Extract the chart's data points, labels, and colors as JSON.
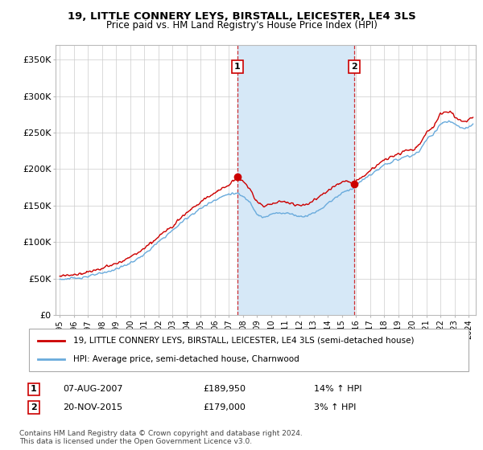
{
  "title": "19, LITTLE CONNERY LEYS, BIRSTALL, LEICESTER, LE4 3LS",
  "subtitle": "Price paid vs. HM Land Registry's House Price Index (HPI)",
  "ylabel_ticks": [
    "£0",
    "£50K",
    "£100K",
    "£150K",
    "£200K",
    "£250K",
    "£300K",
    "£350K"
  ],
  "ytick_values": [
    0,
    50000,
    100000,
    150000,
    200000,
    250000,
    300000,
    350000
  ],
  "ylim": [
    0,
    370000
  ],
  "xlim_start": 1994.7,
  "xlim_end": 2024.5,
  "sale1_year": 2007.6,
  "sale1_price": 189950,
  "sale1_label": "1",
  "sale2_year": 2015.9,
  "sale2_price": 179000,
  "sale2_label": "2",
  "shade_x1_start": 2007.6,
  "shade_x1_end": 2015.9,
  "legend_line1": "19, LITTLE CONNERY LEYS, BIRSTALL, LEICESTER, LE4 3LS (semi-detached house)",
  "legend_line2": "HPI: Average price, semi-detached house, Charnwood",
  "footer": "Contains HM Land Registry data © Crown copyright and database right 2024.\nThis data is licensed under the Open Government Licence v3.0.",
  "hpi_color": "#6aabdc",
  "price_color": "#cc0000",
  "shade_color": "#d6e8f7",
  "grid_color": "#cccccc",
  "marker_color": "#cc0000",
  "vline_color": "#cc0000"
}
